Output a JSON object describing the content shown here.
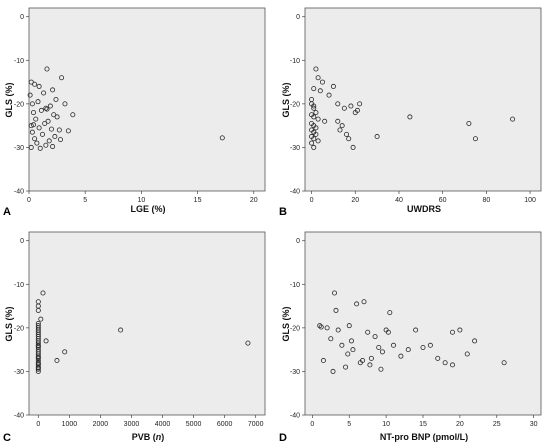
{
  "chart_data": [
    {
      "type": "scatter",
      "panel": "A",
      "xlabel": "LGE (%)",
      "ylabel": "GLS (%)",
      "xlim": [
        0,
        21
      ],
      "ylim": [
        -40,
        2
      ],
      "xticks": [
        0,
        5,
        10,
        15,
        20
      ],
      "xtick_labels": [
        "0",
        "5",
        "10",
        "15",
        "20"
      ],
      "yticks": [
        0,
        -10,
        -20,
        -30,
        -40
      ],
      "ytick_labels": [
        "0",
        "-10",
        "-20",
        "-30",
        "-40"
      ],
      "grid": false,
      "series": [
        {
          "x": [
            0.2,
            0.5,
            0.9,
            1.6,
            2.9,
            0.1,
            1.3,
            2.1,
            0.3,
            0.8,
            1.5,
            1.9,
            0.4,
            1.1,
            2.2,
            3.2,
            0.6,
            1.7,
            2.5,
            3.9,
            0.2,
            0.9,
            1.4,
            2.7,
            0.3,
            1.2,
            2.0,
            3.5,
            0.5,
            1.8,
            2.3,
            0.7,
            1.5,
            2.8,
            0.2,
            1.0,
            2.1,
            0.4,
            1.6,
            2.4,
            17.2
          ],
          "y": [
            -15.0,
            -15.5,
            -16.0,
            -12.0,
            -14.0,
            -18.0,
            -17.5,
            -16.8,
            -20.0,
            -19.5,
            -21.0,
            -20.5,
            -22.0,
            -21.5,
            -22.5,
            -20.0,
            -23.5,
            -24.0,
            -23.0,
            -22.5,
            -25.0,
            -25.5,
            -24.5,
            -26.0,
            -26.5,
            -27.0,
            -25.8,
            -26.2,
            -28.0,
            -28.5,
            -27.5,
            -29.0,
            -29.5,
            -28.2,
            -30.0,
            -30.2,
            -29.8,
            -24.8,
            -21.2,
            -19.0,
            -27.8
          ]
        }
      ]
    },
    {
      "type": "scatter",
      "panel": "B",
      "xlabel": "UWDRS",
      "ylabel": "GLS (%)",
      "xlim": [
        -3,
        105
      ],
      "ylim": [
        -40,
        2
      ],
      "xticks": [
        0,
        20,
        40,
        60,
        80,
        100
      ],
      "xtick_labels": [
        "0",
        "20",
        "40",
        "60",
        "80",
        "100"
      ],
      "yticks": [
        0,
        -10,
        -20,
        -30,
        -40
      ],
      "ytick_labels": [
        "0",
        "-10",
        "-20",
        "-30",
        "-40"
      ],
      "grid": false,
      "series": [
        {
          "x": [
            2,
            3,
            5,
            10,
            1,
            4,
            8,
            0,
            0,
            1,
            1,
            2,
            0,
            1,
            3,
            6,
            0,
            1,
            2,
            0,
            1,
            2,
            0,
            1,
            3,
            0,
            1,
            12,
            15,
            18,
            20,
            14,
            16,
            22,
            12,
            17,
            19,
            13,
            21,
            30,
            45,
            72,
            75,
            92
          ],
          "y": [
            -12.0,
            -14.0,
            -15.0,
            -16.0,
            -16.5,
            -17.0,
            -18.0,
            -19.0,
            -20.0,
            -20.5,
            -21.0,
            -22.0,
            -22.5,
            -23.0,
            -23.5,
            -24.0,
            -24.5,
            -25.0,
            -25.5,
            -26.0,
            -26.5,
            -27.0,
            -27.5,
            -28.0,
            -28.5,
            -29.0,
            -30.0,
            -20.0,
            -21.0,
            -20.5,
            -22.0,
            -25.0,
            -27.0,
            -20.0,
            -24.0,
            -28.0,
            -30.0,
            -26.0,
            -21.5,
            -27.5,
            -23.0,
            -24.5,
            -28.0,
            -23.5
          ]
        }
      ]
    },
    {
      "type": "scatter",
      "panel": "C",
      "xlabel": "PVB (n)",
      "ylabel": "GLS (%)",
      "xlim": [
        -300,
        7300
      ],
      "ylim": [
        -40,
        2
      ],
      "xticks": [
        0,
        1000,
        2000,
        3000,
        4000,
        5000,
        6000,
        7000
      ],
      "xtick_labels": [
        "0",
        "1000",
        "2000",
        "3000",
        "4000",
        "5000",
        "6000",
        "7000"
      ],
      "yticks": [
        0,
        -10,
        -20,
        -30,
        -40
      ],
      "ytick_labels": [
        "0",
        "-10",
        "-20",
        "-30",
        "-40"
      ],
      "grid": false,
      "series": [
        {
          "x": [
            0,
            0,
            0,
            0,
            0,
            0,
            0,
            0,
            0,
            0,
            0,
            0,
            0,
            0,
            0,
            0,
            0,
            0,
            0,
            0,
            0,
            0,
            0,
            0,
            0,
            0,
            0,
            0,
            0,
            0,
            150,
            80,
            250,
            600,
            850,
            2650,
            6750
          ],
          "y": [
            -14.0,
            -15.0,
            -16.0,
            -19.0,
            -19.5,
            -20.0,
            -20.5,
            -21.0,
            -21.5,
            -22.0,
            -22.5,
            -23.0,
            -23.5,
            -24.0,
            -24.5,
            -25.0,
            -25.5,
            -26.0,
            -26.5,
            -27.0,
            -27.5,
            -28.0,
            -28.5,
            -29.0,
            -29.5,
            -30.0,
            -24.2,
            -26.8,
            -28.2,
            -29.2,
            -12.0,
            -18.0,
            -23.0,
            -27.5,
            -25.5,
            -20.5,
            -23.5
          ]
        }
      ]
    },
    {
      "type": "scatter",
      "panel": "D",
      "xlabel": "NT-pro BNP (pmol/L)",
      "ylabel": "GLS (%)",
      "xlim": [
        -1,
        31
      ],
      "ylim": [
        -40,
        2
      ],
      "xticks": [
        0,
        5,
        10,
        15,
        20,
        25,
        30
      ],
      "xtick_labels": [
        "0",
        "5",
        "10",
        "15",
        "20",
        "25",
        "30"
      ],
      "yticks": [
        0,
        -10,
        -20,
        -30,
        -40
      ],
      "ytick_labels": [
        "0",
        "-10",
        "-20",
        "-30",
        "-40"
      ],
      "grid": false,
      "series": [
        {
          "x": [
            1.0,
            1.5,
            2.0,
            2.5,
            3.0,
            3.5,
            4.0,
            4.5,
            5.0,
            5.5,
            6.0,
            6.5,
            7.0,
            7.5,
            8.0,
            8.5,
            9.0,
            9.5,
            10.0,
            10.5,
            11.0,
            12.0,
            13.0,
            14.0,
            15.0,
            16.0,
            17.0,
            18.0,
            19.0,
            20.0,
            21.0,
            22.0,
            26.0,
            3.2,
            5.3,
            6.8,
            9.3,
            1.2,
            2.8,
            4.8,
            7.8,
            10.3,
            19.0
          ],
          "y": [
            -19.5,
            -27.5,
            -20.0,
            -22.5,
            -12.0,
            -20.5,
            -24.0,
            -29.0,
            -19.5,
            -25.0,
            -14.5,
            -28.0,
            -14.0,
            -21.0,
            -27.0,
            -22.0,
            -24.5,
            -25.5,
            -20.5,
            -16.5,
            -24.0,
            -26.5,
            -25.0,
            -20.5,
            -24.5,
            -24.0,
            -27.0,
            -28.0,
            -21.0,
            -20.5,
            -26.0,
            -23.0,
            -28.0,
            -16.0,
            -23.0,
            -27.5,
            -29.5,
            -19.8,
            -30.0,
            -26.0,
            -28.5,
            -21.0,
            -28.5
          ]
        }
      ]
    }
  ],
  "panels": [
    {
      "letter": "A",
      "xlabel": "LGE (%)",
      "ylabel": "GLS (%)"
    },
    {
      "letter": "B",
      "xlabel": "UWDRS",
      "ylabel": "GLS (%)"
    },
    {
      "letter": "C",
      "xlabel_main": "PVB (",
      "xlabel_italic": "n",
      "xlabel_end": ")",
      "ylabel": "GLS (%)"
    },
    {
      "letter": "D",
      "xlabel": "NT-pro BNP (pmol/L)",
      "ylabel": "GLS (%)"
    }
  ]
}
